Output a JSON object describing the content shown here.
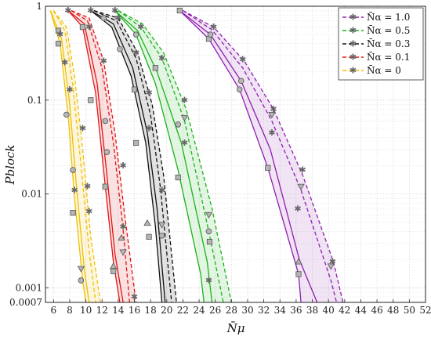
{
  "chart_data": {
    "type": "line",
    "title": "",
    "xlabel": "N̄μ",
    "ylabel": "Pblock",
    "xlim": [
      5,
      52
    ],
    "ylim": [
      0.0007,
      1
    ],
    "yscale": "log",
    "grid": true,
    "x_ticks": [
      6,
      8,
      10,
      12,
      14,
      16,
      18,
      20,
      22,
      24,
      26,
      28,
      30,
      32,
      34,
      36,
      38,
      40,
      42,
      44,
      46,
      48,
      50,
      52
    ],
    "x_tick_labels": [
      "6",
      "8",
      "10",
      "12",
      "14",
      "16",
      "18",
      "20",
      "22",
      "24",
      "26",
      "28",
      "30",
      "32",
      "34",
      "36",
      "38",
      "40",
      "42",
      "44",
      "46",
      "48",
      "50",
      "52"
    ],
    "y_ticks": [
      0.0007,
      0.001,
      0.01,
      0.1,
      1
    ],
    "y_tick_labels": [
      "0.0007",
      "0.001",
      "0.01",
      "0.1",
      "1"
    ],
    "legend_position": "top-right",
    "series": [
      {
        "name": "N̄α = 1.0",
        "color": "#8e1fae",
        "curves": [
          {
            "dash": "solid",
            "points": [
              [
                21.6,
                0.9
              ],
              [
                25.2,
                0.45
              ],
              [
                29.0,
                0.13
              ],
              [
                32.5,
                0.019
              ],
              [
                36.3,
                0.0014
              ],
              [
                36.6,
                0.0007
              ]
            ]
          },
          {
            "dash": "solid",
            "points": [
              [
                21.6,
                0.9
              ],
              [
                25.4,
                0.5
              ],
              [
                29.2,
                0.16
              ],
              [
                32.8,
                0.03
              ],
              [
                36.4,
                0.002
              ],
              [
                38.6,
                0.0007
              ]
            ]
          },
          {
            "dash": "dashed",
            "points": [
              [
                22.0,
                0.9
              ],
              [
                25.6,
                0.56
              ],
              [
                29.4,
                0.22
              ],
              [
                33.0,
                0.06
              ],
              [
                36.6,
                0.011
              ],
              [
                40.3,
                0.0012
              ],
              [
                41.0,
                0.0007
              ]
            ]
          },
          {
            "dash": "dashed",
            "points": [
              [
                22.0,
                0.9
              ],
              [
                25.8,
                0.6
              ],
              [
                29.6,
                0.26
              ],
              [
                33.2,
                0.08
              ],
              [
                36.8,
                0.016
              ],
              [
                40.6,
                0.0019
              ],
              [
                41.8,
                0.0007
              ]
            ]
          }
        ],
        "markers": [
          [
            21.6,
            0.9,
            "square"
          ],
          [
            25.2,
            0.45,
            "square"
          ],
          [
            29.0,
            0.13,
            "circle"
          ],
          [
            32.5,
            0.019,
            "square"
          ],
          [
            36.3,
            0.0014,
            "square"
          ],
          [
            36.3,
            0.0019,
            "triangle"
          ],
          [
            25.4,
            0.5,
            "circle"
          ],
          [
            29.2,
            0.16,
            "circle"
          ],
          [
            33.0,
            0.07,
            "triangle-down"
          ],
          [
            36.6,
            0.012,
            "triangle-down"
          ],
          [
            40.3,
            0.0017,
            "triangle-down"
          ],
          [
            25.8,
            0.6,
            "star"
          ],
          [
            29.4,
            0.27,
            "star"
          ],
          [
            33.2,
            0.08,
            "star"
          ],
          [
            36.8,
            0.018,
            "star"
          ],
          [
            36.2,
            0.007,
            "star"
          ],
          [
            40.5,
            0.0019,
            "star"
          ],
          [
            33.0,
            0.045,
            "star"
          ]
        ]
      },
      {
        "name": "N̄α = 0.5",
        "color": "#19b219",
        "curves": [
          {
            "dash": "solid",
            "points": [
              [
                13.6,
                0.9
              ],
              [
                16.2,
                0.5
              ],
              [
                18.6,
                0.15
              ],
              [
                21.4,
                0.018
              ],
              [
                24.2,
                0.0014
              ],
              [
                24.6,
                0.0007
              ]
            ]
          },
          {
            "dash": "solid",
            "points": [
              [
                13.6,
                0.9
              ],
              [
                16.4,
                0.55
              ],
              [
                18.8,
                0.2
              ],
              [
                21.8,
                0.035
              ],
              [
                25.0,
                0.0019
              ],
              [
                25.6,
                0.0007
              ]
            ]
          },
          {
            "dash": "dashed",
            "points": [
              [
                14.0,
                0.9
              ],
              [
                16.8,
                0.6
              ],
              [
                19.4,
                0.28
              ],
              [
                22.2,
                0.06
              ],
              [
                25.2,
                0.004
              ],
              [
                27.0,
                0.0007
              ]
            ]
          },
          {
            "dash": "dashed",
            "points": [
              [
                14.0,
                0.9
              ],
              [
                17.0,
                0.65
              ],
              [
                19.6,
                0.32
              ],
              [
                22.4,
                0.08
              ],
              [
                25.6,
                0.007
              ],
              [
                28.0,
                0.0007
              ]
            ]
          }
        ],
        "markers": [
          [
            13.6,
            0.9,
            "star"
          ],
          [
            16.2,
            0.5,
            "circle"
          ],
          [
            18.6,
            0.22,
            "square"
          ],
          [
            21.4,
            0.055,
            "circle"
          ],
          [
            21.4,
            0.015,
            "square"
          ],
          [
            25.2,
            0.004,
            "circle"
          ],
          [
            25.3,
            0.0031,
            "square"
          ],
          [
            25.2,
            0.0012,
            "star"
          ],
          [
            25.2,
            0.006,
            "triangle-down"
          ],
          [
            22.2,
            0.065,
            "triangle-down"
          ],
          [
            22.2,
            0.035,
            "star"
          ],
          [
            22.2,
            0.1,
            "star"
          ],
          [
            16.8,
            0.6,
            "star"
          ],
          [
            19.4,
            0.28,
            "star"
          ]
        ]
      },
      {
        "name": "N̄α = 0.3",
        "color": "#111111",
        "curves": [
          {
            "dash": "solid",
            "points": [
              [
                10.6,
                0.9
              ],
              [
                13.2,
                0.6
              ],
              [
                15.6,
                0.18
              ],
              [
                17.4,
                0.035
              ],
              [
                18.6,
                0.0045
              ],
              [
                19.4,
                0.0007
              ]
            ]
          },
          {
            "dash": "solid",
            "points": [
              [
                10.6,
                0.9
              ],
              [
                13.4,
                0.65
              ],
              [
                15.8,
                0.22
              ],
              [
                17.6,
                0.045
              ],
              [
                18.8,
                0.007
              ],
              [
                19.8,
                0.0007
              ]
            ]
          },
          {
            "dash": "dashed",
            "points": [
              [
                11.0,
                0.9
              ],
              [
                13.8,
                0.7
              ],
              [
                16.2,
                0.28
              ],
              [
                18.0,
                0.07
              ],
              [
                19.2,
                0.012
              ],
              [
                20.6,
                0.0007
              ]
            ]
          },
          {
            "dash": "dashed",
            "points": [
              [
                11.0,
                0.9
              ],
              [
                14.0,
                0.75
              ],
              [
                16.4,
                0.32
              ],
              [
                18.2,
                0.09
              ],
              [
                19.6,
                0.016
              ],
              [
                21.2,
                0.0007
              ]
            ]
          }
        ],
        "markers": [
          [
            10.6,
            0.9,
            "star"
          ],
          [
            12.2,
            0.75,
            "circle"
          ],
          [
            14.2,
            0.35,
            "circle"
          ],
          [
            16.2,
            0.035,
            "square"
          ],
          [
            17.6,
            0.0049,
            "triangle"
          ],
          [
            17.8,
            0.0035,
            "square"
          ],
          [
            19.4,
            0.0036,
            "circle"
          ],
          [
            19.4,
            0.0047,
            "triangle-down"
          ],
          [
            19.4,
            0.011,
            "star"
          ],
          [
            17.8,
            0.05,
            "star"
          ],
          [
            17.8,
            0.12,
            "star"
          ],
          [
            16.0,
            0.13,
            "square"
          ],
          [
            14.0,
            0.75,
            "star"
          ],
          [
            16.2,
            0.32,
            "star"
          ]
        ]
      },
      {
        "name": "N̄α = 0.1",
        "color": "#e01414",
        "curves": [
          {
            "dash": "solid",
            "points": [
              [
                7.8,
                0.9
              ],
              [
                9.6,
                0.6
              ],
              [
                11.2,
                0.12
              ],
              [
                12.4,
                0.012
              ],
              [
                13.4,
                0.0019
              ],
              [
                14.2,
                0.0007
              ]
            ]
          },
          {
            "dash": "solid",
            "points": [
              [
                7.8,
                0.9
              ],
              [
                9.8,
                0.65
              ],
              [
                11.4,
                0.15
              ],
              [
                12.6,
                0.016
              ],
              [
                13.6,
                0.0023
              ],
              [
                14.6,
                0.0007
              ]
            ]
          },
          {
            "dash": "dashed",
            "points": [
              [
                8.2,
                0.9
              ],
              [
                10.2,
                0.7
              ],
              [
                12.0,
                0.22
              ],
              [
                13.4,
                0.035
              ],
              [
                14.6,
                0.0042
              ],
              [
                15.4,
                0.0007
              ]
            ]
          },
          {
            "dash": "dashed",
            "points": [
              [
                8.2,
                0.9
              ],
              [
                10.4,
                0.75
              ],
              [
                12.2,
                0.26
              ],
              [
                13.6,
                0.045
              ],
              [
                14.8,
                0.006
              ],
              [
                16.2,
                0.0007
              ]
            ]
          }
        ],
        "markers": [
          [
            7.8,
            0.9,
            "star"
          ],
          [
            9.6,
            0.6,
            "square"
          ],
          [
            10.6,
            0.1,
            "square"
          ],
          [
            12.4,
            0.012,
            "square"
          ],
          [
            12.6,
            0.028,
            "circle"
          ],
          [
            12.4,
            0.06,
            "circle"
          ],
          [
            13.4,
            0.0017,
            "triangle"
          ],
          [
            13.4,
            0.0015,
            "square"
          ],
          [
            14.4,
            0.0034,
            "triangle"
          ],
          [
            14.6,
            0.0024,
            "triangle-down"
          ],
          [
            14.6,
            0.0045,
            "star"
          ],
          [
            14.6,
            0.02,
            "star"
          ],
          [
            12.2,
            0.26,
            "star"
          ],
          [
            10.4,
            0.6,
            "star"
          ],
          [
            16.0,
            0.0008,
            "star"
          ]
        ]
      },
      {
        "name": "N̄α = 0",
        "color": "#f0c000",
        "curves": [
          {
            "dash": "solid",
            "points": [
              [
                5.6,
                0.9
              ],
              [
                6.8,
                0.4
              ],
              [
                7.8,
                0.07
              ],
              [
                8.6,
                0.009
              ],
              [
                9.6,
                0.0012
              ],
              [
                10.0,
                0.0007
              ]
            ]
          },
          {
            "dash": "solid",
            "points": [
              [
                5.6,
                0.9
              ],
              [
                7.0,
                0.45
              ],
              [
                8.0,
                0.09
              ],
              [
                8.8,
                0.013
              ],
              [
                9.8,
                0.0016
              ],
              [
                10.4,
                0.0007
              ]
            ]
          },
          {
            "dash": "dashed",
            "points": [
              [
                6.0,
                0.9
              ],
              [
                7.4,
                0.55
              ],
              [
                8.4,
                0.14
              ],
              [
                9.4,
                0.02
              ],
              [
                10.4,
                0.0025
              ],
              [
                11.2,
                0.0007
              ]
            ]
          },
          {
            "dash": "dashed",
            "points": [
              [
                6.0,
                0.9
              ],
              [
                7.6,
                0.6
              ],
              [
                8.6,
                0.18
              ],
              [
                9.6,
                0.03
              ],
              [
                10.6,
                0.0035
              ],
              [
                11.8,
                0.0007
              ]
            ]
          }
        ],
        "markers": [
          [
            6.6,
            0.55,
            "square"
          ],
          [
            6.6,
            0.4,
            "square"
          ],
          [
            7.6,
            0.07,
            "circle"
          ],
          [
            8.4,
            0.018,
            "circle"
          ],
          [
            8.4,
            0.0063,
            "square"
          ],
          [
            9.4,
            0.0012,
            "circle"
          ],
          [
            9.4,
            0.0016,
            "triangle-down"
          ],
          [
            10.4,
            0.0065,
            "star"
          ],
          [
            8.6,
            0.011,
            "star"
          ],
          [
            7.4,
            0.25,
            "star"
          ],
          [
            6.8,
            0.5,
            "star"
          ],
          [
            8.0,
            0.13,
            "star"
          ],
          [
            9.6,
            0.05,
            "star"
          ],
          [
            10.2,
            0.012,
            "star"
          ]
        ]
      }
    ]
  }
}
